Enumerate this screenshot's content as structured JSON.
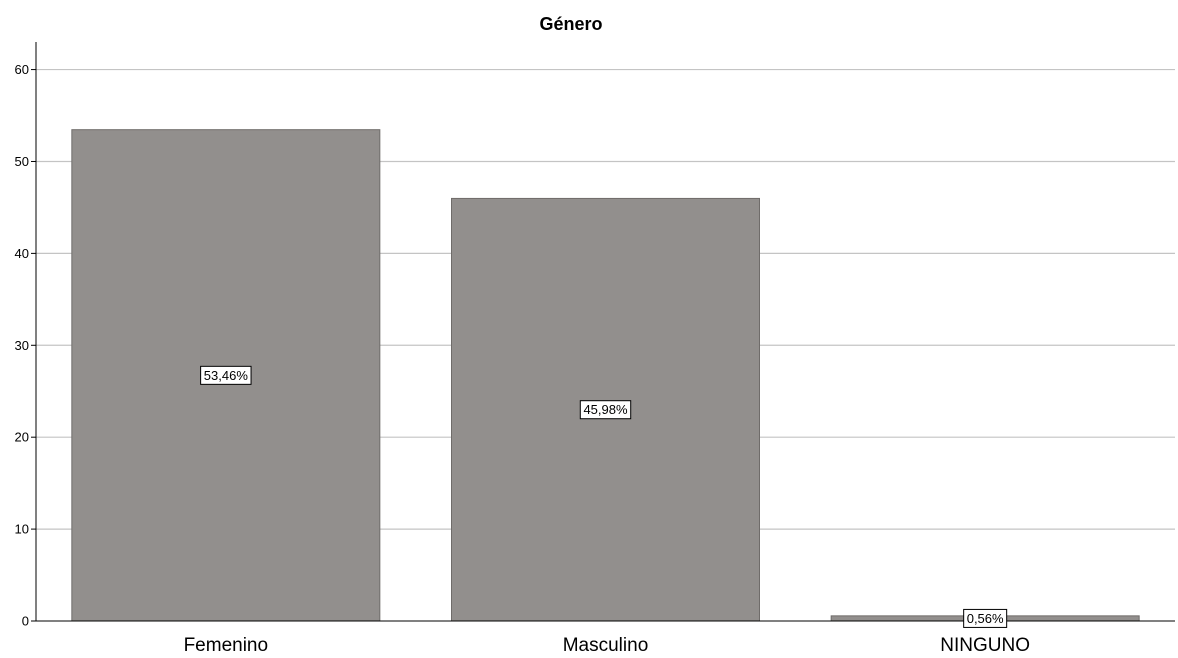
{
  "chart_data": {
    "type": "bar",
    "title": "Género",
    "xlabel": "",
    "ylabel": "",
    "categories": [
      "Femenino",
      "Masculino",
      "NINGUNO"
    ],
    "values": [
      53.46,
      45.98,
      0.56
    ],
    "data_labels": [
      "53,46%",
      "45,98%",
      "0,56%"
    ],
    "ylim": [
      0,
      63
    ],
    "yticks": [
      0,
      10,
      20,
      30,
      40,
      50,
      60
    ],
    "grid": true,
    "legend": "none",
    "colors": {
      "bar": "#928f8d",
      "bar_edge": "#6f6c6a",
      "grid": "#c4c4c4",
      "axis": "#000000",
      "label_box": "#ffffff"
    }
  }
}
